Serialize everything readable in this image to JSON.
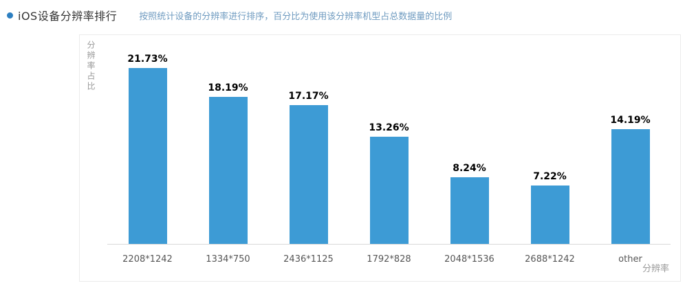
{
  "header": {
    "title": "iOS设备分辨率排行",
    "subtitle": "按照统计设备的分辨率进行排序，百分比为使用该分辨率机型占总数据量的比例",
    "bullet_color": "#2d7fc1"
  },
  "chart_data": {
    "type": "bar",
    "categories": [
      "2208*1242",
      "1334*750",
      "2436*1125",
      "1792*828",
      "2048*1536",
      "2688*1242",
      "other"
    ],
    "values": [
      21.73,
      18.19,
      17.17,
      13.26,
      8.24,
      7.22,
      14.19
    ],
    "value_labels": [
      "21.73%",
      "18.19%",
      "17.17%",
      "13.26%",
      "8.24%",
      "7.22%",
      "14.19%"
    ],
    "title": "",
    "xlabel": "分辨率",
    "ylabel": "分辨率占比",
    "ylim": [
      0,
      26
    ],
    "bar_color": "#3d9bd5",
    "grid": false,
    "legend": false
  }
}
